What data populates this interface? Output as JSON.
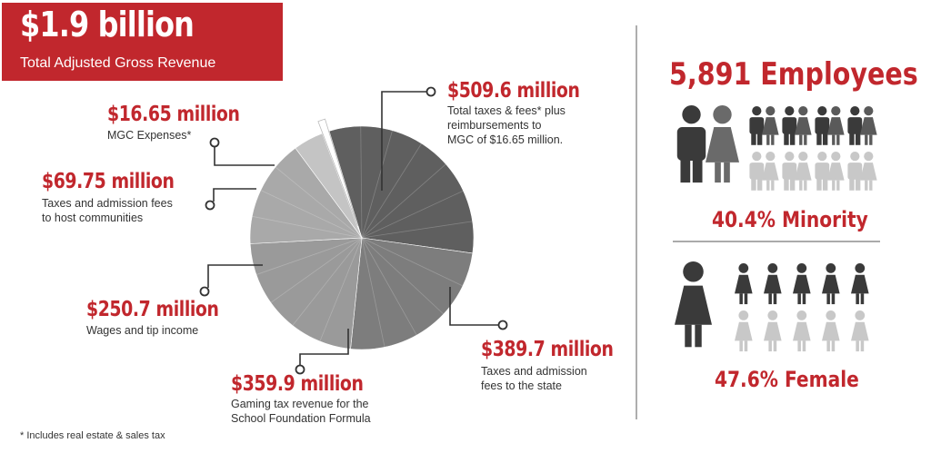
{
  "headline": {
    "amount": "$1.9 billion",
    "subtitle": "Total Adjusted Gross Revenue"
  },
  "chart_data": {
    "type": "pie",
    "title": "$1.9 billion",
    "subtitle": "Total Adjusted Gross Revenue",
    "unit": "$ million",
    "slices": [
      {
        "label": "$509.6 million",
        "value": 509.6,
        "description": [
          "Total taxes & fees* plus",
          "reimbursements to",
          "MGC of $16.65 million."
        ],
        "color": "#5f5f5f"
      },
      {
        "label": "$389.7 million",
        "value": 389.7,
        "description": [
          "Taxes and admission",
          "fees to the state"
        ],
        "color": "#7d7d7d"
      },
      {
        "label": "$359.9 million",
        "value": 359.9,
        "description": [
          "Gaming tax revenue for the",
          "School Foundation Formula"
        ],
        "color": "#9a9a9a"
      },
      {
        "label": "$250.7 million",
        "value": 250.7,
        "description": [
          "Wages and tip income"
        ],
        "color": "#a9a9a9"
      },
      {
        "label": "$69.75 million",
        "value": 69.75,
        "description": [
          "Taxes and admission fees",
          "to host communities"
        ],
        "color": "#c4c4c4"
      },
      {
        "label": "$16.65 million",
        "value": 16.65,
        "description": [
          "MGC Expenses*"
        ],
        "color": "#ffffff",
        "exploded": true
      }
    ],
    "footnote": "* Includes real estate & sales tax"
  },
  "employees": {
    "headline": "5,891 Employees",
    "minority_label": "40.4% Minority",
    "minority_pct": 40.4,
    "female_label": "47.6% Female",
    "female_pct": 47.6
  },
  "colors": {
    "accent": "#c1272d",
    "dark": "#3a3a3a",
    "light": "#c8c8c8"
  }
}
